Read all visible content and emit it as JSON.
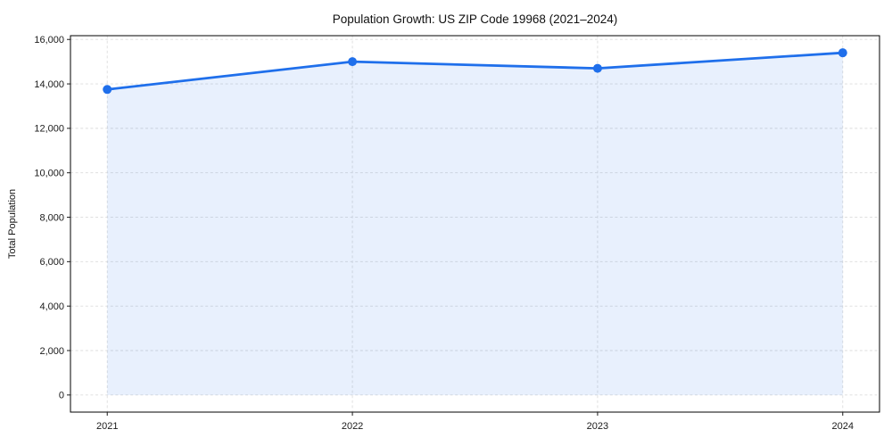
{
  "page": {
    "background": "#ffffff"
  },
  "chart_data": {
    "type": "area",
    "title": "Population Growth: US ZIP Code 19968 (2021–2024)",
    "xlabel": "",
    "ylabel": "Total Population",
    "categories": [
      "2021",
      "2022",
      "2023",
      "2024"
    ],
    "x_values": [
      2021,
      2022,
      2023,
      2024
    ],
    "series": [
      {
        "name": "Total Population",
        "values": [
          13750,
          15000,
          14700,
          15400
        ]
      }
    ],
    "values": [
      13750,
      15000,
      14700,
      15400
    ],
    "baseline": 0,
    "y_ticks": [
      0,
      2000,
      4000,
      6000,
      8000,
      10000,
      12000,
      14000,
      16000
    ],
    "y_tick_labels": [
      "0",
      "2,000",
      "4,000",
      "6,000",
      "8,000",
      "10,000",
      "12,000",
      "14,000",
      "16,000"
    ],
    "xlim": [
      2020.85,
      2024.15
    ],
    "ylim": [
      -770,
      16170
    ],
    "grid": true,
    "grid_style": "dashed",
    "legend_position": "none",
    "marker": "circle",
    "colors": {
      "line": "#1f6feb",
      "fill": "rgba(31,111,235,0.10)",
      "grid": "#dcdcdc",
      "spine": "#000000",
      "text": "#111111"
    }
  }
}
